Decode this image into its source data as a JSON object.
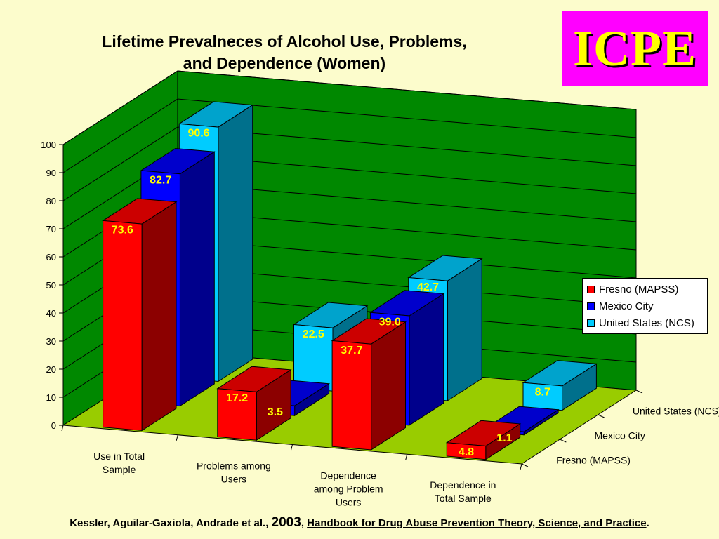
{
  "title_line1": "Lifetime Prevalneces of Alcohol Use, Problems,",
  "title_line2": "and Dependence (Women)",
  "logo_text": "ICPE",
  "citation": {
    "authors": "Kessler, Aguilar-Gaxiola, Andrade et al., ",
    "year": "2003",
    "sep": ", ",
    "book": "Handbook for Drug Abuse Prevention Theory, Science, and Practice",
    "end": "."
  },
  "chart_data": {
    "type": "bar",
    "subtype": "3d-clustered",
    "categories": [
      "Use in Total Sample",
      "Problems among Users",
      "Dependence among Problem Users",
      "Dependence in Total Sample"
    ],
    "series": [
      {
        "name": "Fresno (MAPSS)",
        "color": "#ff0000",
        "values": [
          73.6,
          17.2,
          37.7,
          4.8
        ]
      },
      {
        "name": "Mexico City",
        "color": "#0000ff",
        "values": [
          82.7,
          3.5,
          39.0,
          1.1
        ]
      },
      {
        "name": "United States (NCS)",
        "color": "#00ccff",
        "values": [
          90.6,
          22.5,
          42.7,
          8.7
        ]
      }
    ],
    "data_labels": [
      [
        "73.6",
        "17.2",
        "37.7",
        "4.8"
      ],
      [
        "82.7",
        "3.5",
        "39.0",
        "1.1"
      ],
      [
        "90.6",
        "22.5",
        "42.7",
        "8.7"
      ]
    ],
    "ylim": [
      0,
      100
    ],
    "yticks": [
      "0",
      "10",
      "20",
      "30",
      "40",
      "50",
      "60",
      "70",
      "80",
      "90",
      "100"
    ],
    "depth_labels": [
      "Fresno (MAPSS)",
      "Mexico City",
      "United States (NCS)"
    ],
    "grid": true,
    "legend": "right",
    "wall_color": "#008800",
    "floor_color": "#99cc00",
    "label_color": "#ffff00"
  }
}
